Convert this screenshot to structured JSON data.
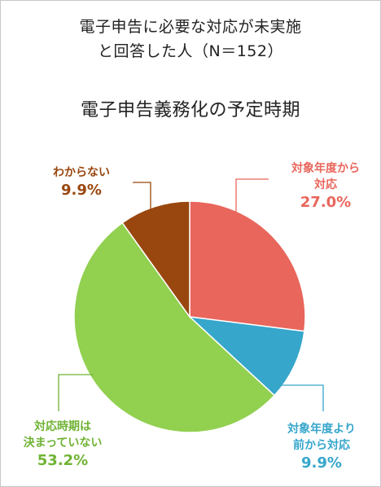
{
  "header": {
    "subtitle_line1": "電子申告に必要な対応が未実施",
    "subtitle_line2": "と回答した人（N＝152）"
  },
  "chart_data": {
    "type": "pie",
    "title": "電子申告義務化の予定時期",
    "start": "top-clockwise",
    "slices": [
      {
        "label_lines": [
          "対象年度から",
          "対応"
        ],
        "value": 27.0,
        "value_label": "27.0%",
        "color": "#e8665c"
      },
      {
        "label_lines": [
          "対象年度より",
          "前から対応"
        ],
        "value": 9.9,
        "value_label": "9.9%",
        "color": "#36a6cb"
      },
      {
        "label_lines": [
          "対応時期は",
          "決まっていない"
        ],
        "value": 53.2,
        "value_label": "53.2%",
        "color": "#92d050"
      },
      {
        "label_lines": [
          "わからない"
        ],
        "value": 9.9,
        "value_label": "9.9%",
        "color": "#99470f"
      }
    ],
    "label_colors": [
      "#e8665c",
      "#36a6cb",
      "#70b335",
      "#99470f"
    ]
  }
}
